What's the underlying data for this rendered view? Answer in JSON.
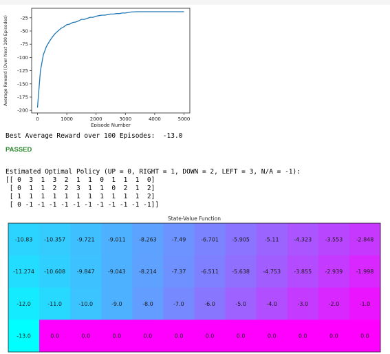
{
  "output": {
    "best_reward_line": "Best Average Reward over 100 Episodes:  -13.0",
    "status": "PASSED",
    "policy_header": "Estimated Optimal Policy (UP = 0, RIGHT = 1, DOWN = 2, LEFT = 3, N/A = -1):",
    "policy_rows": [
      "[[ 0  3  1  3  2  1  1  0  1  1  1  0]",
      " [ 0  1  1  2  2  3  1  1  0  2  1  2]",
      " [ 1  1  1  1  1  1  1  1  1  1  1  2]",
      " [ 0 -1 -1 -1 -1 -1 -1 -1 -1 -1 -1 -1]]"
    ]
  },
  "chart_data": [
    {
      "type": "line",
      "xlabel": "Episode Number",
      "ylabel": "Average Reward (Over Next 100 Episodes)",
      "xlim": [
        -200,
        5200
      ],
      "ylim": [
        -205,
        -7
      ],
      "xticks": [
        "0",
        "1000",
        "2000",
        "3000",
        "4000",
        "5000"
      ],
      "yticks": [
        "-200",
        "-175",
        "-150",
        "-125",
        "-100",
        "-75",
        "-50",
        "-25"
      ],
      "xtick_values": [
        0,
        1000,
        2000,
        3000,
        4000,
        5000
      ],
      "ytick_values": [
        -200,
        -175,
        -150,
        -125,
        -100,
        -75,
        -50,
        -25
      ],
      "color": "#1f77b4",
      "x": [
        0,
        50,
        100,
        200,
        300,
        400,
        500,
        600,
        700,
        800,
        900,
        1000,
        1100,
        1200,
        1300,
        1400,
        1500,
        1600,
        1700,
        1800,
        1900,
        2000,
        2100,
        2200,
        2300,
        2400,
        2500,
        2600,
        2700,
        2800,
        2900,
        3000,
        3100,
        3200,
        3400,
        3600,
        3800,
        4000,
        4500,
        5000
      ],
      "y": [
        -195,
        -160,
        -125,
        -95,
        -80,
        -70,
        -62,
        -55,
        -50,
        -45,
        -42,
        -38,
        -37,
        -34,
        -33,
        -31,
        -28,
        -28,
        -26,
        -24,
        -24,
        -22,
        -21,
        -20,
        -20,
        -19,
        -18,
        -18,
        -17,
        -17,
        -16,
        -16,
        -15,
        -14,
        -13.5,
        -13.5,
        -13.5,
        -13.5,
        -13.5,
        -13.5
      ]
    },
    {
      "type": "heatmap",
      "title": "State-Value Function",
      "colormap": "cool",
      "vmin": -13.0,
      "vmax": 0.0,
      "values": [
        [
          -10.83,
          -10.357,
          -9.721,
          -9.011,
          -8.263,
          -7.49,
          -6.701,
          -5.905,
          -5.11,
          -4.323,
          -3.553,
          -2.848
        ],
        [
          -11.274,
          -10.608,
          -9.847,
          -9.043,
          -8.214,
          -7.37,
          -6.511,
          -5.638,
          -4.753,
          -3.855,
          -2.939,
          -1.998
        ],
        [
          -12.0,
          -11.0,
          -10.0,
          -9.0,
          -8.0,
          -7.0,
          -6.0,
          -5.0,
          -4.0,
          -3.0,
          -2.0,
          -1.0
        ],
        [
          -13.0,
          0.0,
          0.0,
          0.0,
          0.0,
          0.0,
          0.0,
          0.0,
          0.0,
          0.0,
          0.0,
          0.0
        ]
      ],
      "labels": [
        [
          "-10.83",
          "-10.357",
          "-9.721",
          "-9.011",
          "-8.263",
          "-7.49",
          "-6.701",
          "-5.905",
          "-5.11",
          "-4.323",
          "-3.553",
          "-2.848"
        ],
        [
          "-11.274",
          "-10.608",
          "-9.847",
          "-9.043",
          "-8.214",
          "-7.37",
          "-6.511",
          "-5.638",
          "-4.753",
          "-3.855",
          "-2.939",
          "-1.998"
        ],
        [
          "-12.0",
          "-11.0",
          "-10.0",
          "-9.0",
          "-8.0",
          "-7.0",
          "-6.0",
          "-5.0",
          "-4.0",
          "-3.0",
          "-2.0",
          "-1.0"
        ],
        [
          "-13.0",
          "0.0",
          "0.0",
          "0.0",
          "0.0",
          "0.0",
          "0.0",
          "0.0",
          "0.0",
          "0.0",
          "0.0",
          "0.0"
        ]
      ]
    }
  ]
}
